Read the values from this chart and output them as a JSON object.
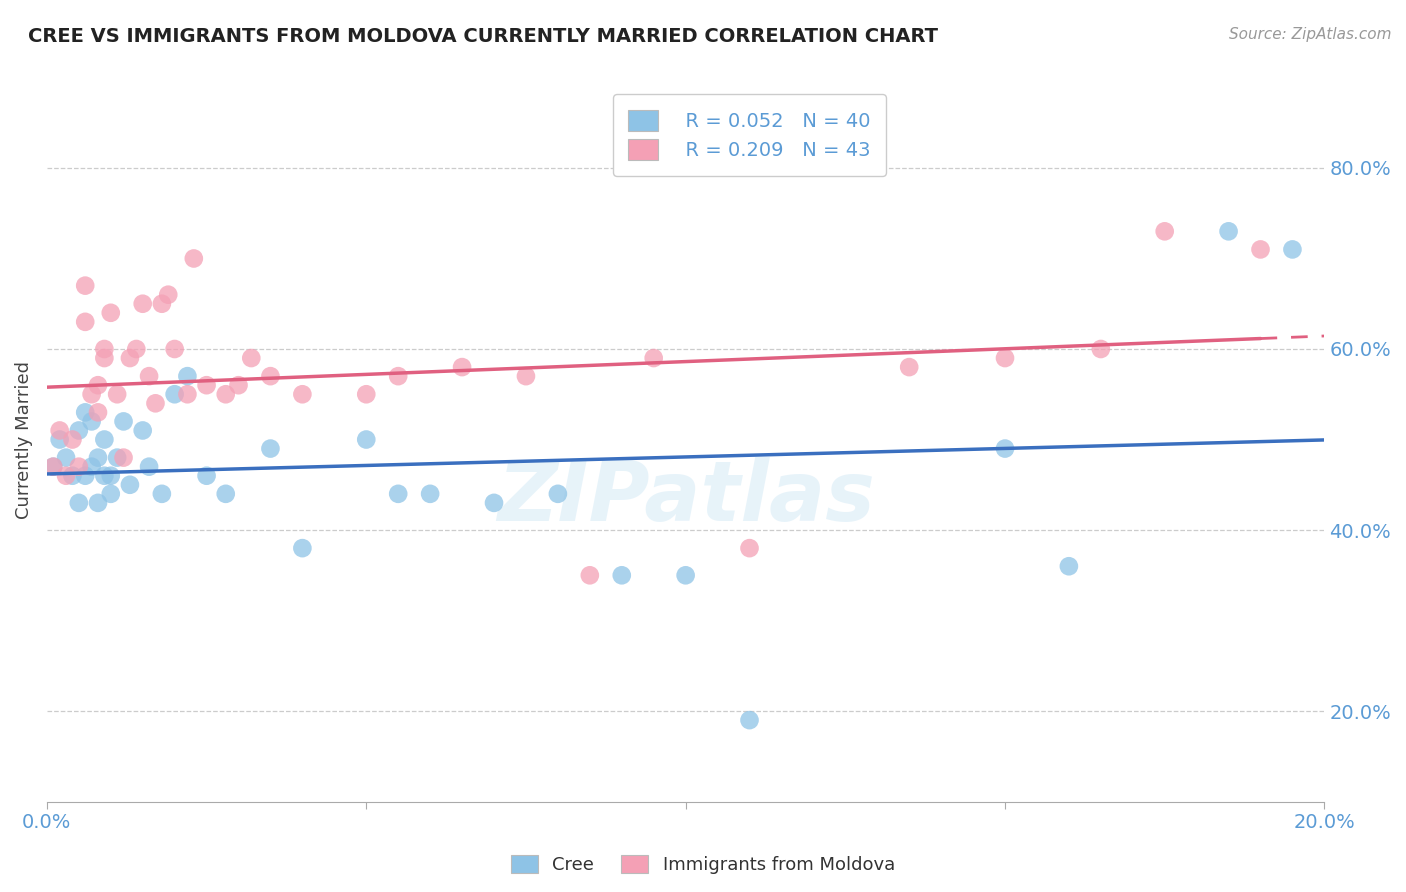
{
  "title": "CREE VS IMMIGRANTS FROM MOLDOVA CURRENTLY MARRIED CORRELATION CHART",
  "source": "Source: ZipAtlas.com",
  "ylabel": "Currently Married",
  "xlabel_cree": "Cree",
  "xlabel_moldova": "Immigrants from Moldova",
  "watermark": "ZIPatlas",
  "xlim": [
    0.0,
    0.2
  ],
  "ylim": [
    0.1,
    0.9
  ],
  "ytick_vals": [
    0.2,
    0.4,
    0.6,
    0.8
  ],
  "xtick_vals": [
    0.0,
    0.05,
    0.1,
    0.15,
    0.2
  ],
  "cree_R": 0.052,
  "cree_N": 40,
  "moldova_R": 0.209,
  "moldova_N": 43,
  "cree_color": "#8ec3e6",
  "moldova_color": "#f4a0b5",
  "cree_line_color": "#3a6fbf",
  "moldova_line_color": "#e06080",
  "title_color": "#222222",
  "axis_color": "#5b9bd5",
  "legend_text_color": "#5b9bd5",
  "grid_color": "#cccccc",
  "background_color": "#ffffff",
  "cree_x": [
    0.001,
    0.002,
    0.003,
    0.004,
    0.005,
    0.005,
    0.006,
    0.006,
    0.007,
    0.007,
    0.008,
    0.008,
    0.009,
    0.009,
    0.01,
    0.01,
    0.011,
    0.012,
    0.013,
    0.015,
    0.016,
    0.018,
    0.02,
    0.022,
    0.025,
    0.028,
    0.035,
    0.04,
    0.05,
    0.055,
    0.06,
    0.07,
    0.08,
    0.09,
    0.1,
    0.11,
    0.15,
    0.16,
    0.185,
    0.195
  ],
  "cree_y": [
    0.47,
    0.5,
    0.48,
    0.46,
    0.51,
    0.43,
    0.53,
    0.46,
    0.47,
    0.52,
    0.48,
    0.43,
    0.46,
    0.5,
    0.46,
    0.44,
    0.48,
    0.52,
    0.45,
    0.51,
    0.47,
    0.44,
    0.55,
    0.57,
    0.46,
    0.44,
    0.49,
    0.38,
    0.5,
    0.44,
    0.44,
    0.43,
    0.44,
    0.35,
    0.35,
    0.19,
    0.49,
    0.36,
    0.73,
    0.71
  ],
  "moldova_x": [
    0.001,
    0.002,
    0.003,
    0.004,
    0.005,
    0.006,
    0.006,
    0.007,
    0.008,
    0.008,
    0.009,
    0.009,
    0.01,
    0.011,
    0.012,
    0.013,
    0.014,
    0.015,
    0.016,
    0.017,
    0.018,
    0.019,
    0.02,
    0.022,
    0.023,
    0.025,
    0.028,
    0.03,
    0.032,
    0.035,
    0.04,
    0.05,
    0.055,
    0.065,
    0.075,
    0.085,
    0.095,
    0.11,
    0.135,
    0.15,
    0.165,
    0.175,
    0.19
  ],
  "moldova_y": [
    0.47,
    0.51,
    0.46,
    0.5,
    0.47,
    0.67,
    0.63,
    0.55,
    0.56,
    0.53,
    0.59,
    0.6,
    0.64,
    0.55,
    0.48,
    0.59,
    0.6,
    0.65,
    0.57,
    0.54,
    0.65,
    0.66,
    0.6,
    0.55,
    0.7,
    0.56,
    0.55,
    0.56,
    0.59,
    0.57,
    0.55,
    0.55,
    0.57,
    0.58,
    0.57,
    0.35,
    0.59,
    0.38,
    0.58,
    0.59,
    0.6,
    0.73,
    0.71
  ]
}
